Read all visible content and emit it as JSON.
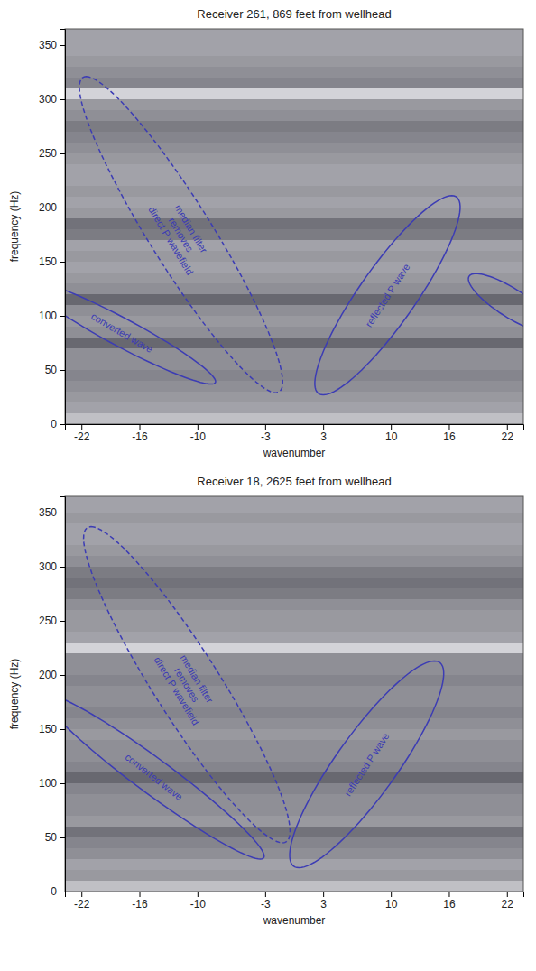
{
  "chart_data": [
    {
      "type": "heatmap",
      "title": "Receiver 261, 869 feet from wellhead",
      "x_label": "wavenumber",
      "y_label": "frequency (Hz)",
      "xlim": [
        -23.7,
        23.7
      ],
      "ylim": [
        0,
        365
      ],
      "xticks": [
        -22,
        -16,
        -10,
        -3,
        3,
        10,
        16,
        22
      ],
      "yticks": [
        0,
        50,
        100,
        150,
        200,
        250,
        300,
        350
      ],
      "heat_rows": {
        "bins": [
          0,
          10,
          20,
          30,
          40,
          50,
          60,
          70,
          80,
          90,
          100,
          110,
          120,
          130,
          140,
          150,
          160,
          170,
          180,
          190,
          200,
          210,
          220,
          230,
          240,
          250,
          260,
          270,
          280,
          290,
          300,
          310,
          320,
          330,
          340,
          350,
          360,
          365
        ],
        "values": [
          0.75,
          0.6,
          0.55,
          0.5,
          0.45,
          0.5,
          0.5,
          0.3,
          0.5,
          0.55,
          0.5,
          0.3,
          0.5,
          0.55,
          0.6,
          0.55,
          0.6,
          0.4,
          0.35,
          0.55,
          0.6,
          0.55,
          0.6,
          0.6,
          0.55,
          0.5,
          0.45,
          0.4,
          0.5,
          0.55,
          0.85,
          0.45,
          0.5,
          0.55,
          0.6,
          0.6,
          0.6
        ],
        "zlim": [
          0,
          1
        ]
      },
      "ellipses": [
        {
          "text": [
            "median filter",
            "removes",
            "direct P wavefield"
          ],
          "line_style": "dashed",
          "color": "#3c3cb4",
          "top": [
            -21.5,
            321
          ],
          "bottom": [
            -1.9,
            29
          ],
          "half_width": 3.8
        },
        {
          "text": [
            "converted wave"
          ],
          "line_style": "solid",
          "color": "#3c3cb4",
          "top": [
            -27,
            132
          ],
          "bottom": [
            -8.6,
            37
          ],
          "half_width": 3.0
        },
        {
          "text": [
            "reflected P wave"
          ],
          "line_style": "solid",
          "color": "#3c3cb4",
          "top": [
            16.3,
            211
          ],
          "bottom": [
            3.0,
            27
          ],
          "half_width": 3.5
        },
        {
          "line_style": "solid",
          "color": "#3c3cb4",
          "top": [
            18.8,
            139
          ],
          "bottom": [
            26,
            85
          ],
          "half_width": 2.5
        }
      ]
    },
    {
      "type": "heatmap",
      "title": "Receiver 18, 2625 feet from wellhead",
      "x_label": "wavenumber",
      "y_label": "frequency (Hz)",
      "xlim": [
        -23.7,
        23.7
      ],
      "ylim": [
        0,
        365
      ],
      "xticks": [
        -22,
        -16,
        -10,
        -3,
        3,
        10,
        16,
        22
      ],
      "yticks": [
        0,
        50,
        100,
        150,
        200,
        250,
        300,
        350
      ],
      "heat_rows": {
        "bins": [
          0,
          10,
          20,
          30,
          40,
          50,
          60,
          70,
          80,
          90,
          100,
          110,
          120,
          130,
          140,
          150,
          160,
          170,
          180,
          190,
          200,
          210,
          220,
          230,
          240,
          250,
          260,
          270,
          280,
          290,
          300,
          310,
          320,
          330,
          340,
          350,
          360,
          365
        ],
        "values": [
          0.75,
          0.55,
          0.6,
          0.5,
          0.45,
          0.35,
          0.55,
          0.5,
          0.5,
          0.45,
          0.3,
          0.45,
          0.5,
          0.5,
          0.55,
          0.5,
          0.45,
          0.5,
          0.5,
          0.45,
          0.5,
          0.5,
          0.85,
          0.6,
          0.55,
          0.55,
          0.5,
          0.4,
          0.35,
          0.4,
          0.5,
          0.55,
          0.6,
          0.6,
          0.55,
          0.6,
          0.6
        ],
        "zlim": [
          0,
          1
        ]
      },
      "ellipses": [
        {
          "text": [
            "median filter",
            "removes",
            "direct P wavefield"
          ],
          "line_style": "dashed",
          "color": "#3c3cb4",
          "top": [
            -21,
            337
          ],
          "bottom": [
            -1.2,
            45
          ],
          "half_width": 4.0
        },
        {
          "text": [
            "converted wave"
          ],
          "line_style": "solid",
          "color": "#3c3cb4",
          "top": [
            -25.5,
            182
          ],
          "bottom": [
            -3.5,
            30
          ],
          "half_width": 3.0
        },
        {
          "text": [
            "reflected P wave"
          ],
          "line_style": "solid",
          "color": "#3c3cb4",
          "top": [
            14.5,
            213
          ],
          "bottom": [
            0.5,
            22
          ],
          "half_width": 3.8
        }
      ]
    }
  ]
}
